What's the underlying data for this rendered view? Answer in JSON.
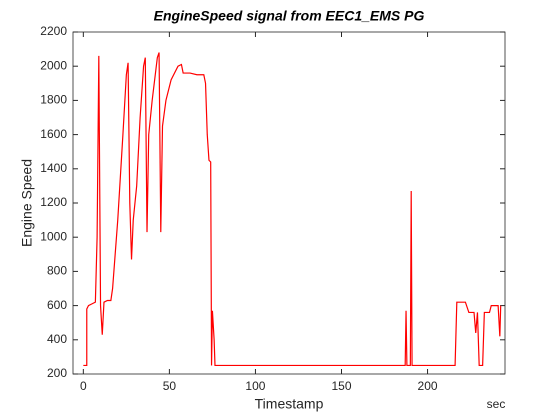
{
  "chart_data": {
    "type": "line",
    "title": "EngineSpeed  signal  from  EEC1_EMS  PG",
    "x_label": "Timestamp",
    "y_label": "Engine Speed",
    "x_unit": "sec",
    "xlim": [
      -6,
      245
    ],
    "ylim": [
      200,
      2200
    ],
    "xticks": [
      0,
      50,
      100,
      150,
      200
    ],
    "yticks": [
      200,
      400,
      600,
      800,
      1000,
      1200,
      1400,
      1600,
      1800,
      2000,
      2200
    ],
    "series": [
      {
        "name": "EngineSpeed",
        "color": "#ff0000",
        "x": [
          0,
          2,
          2,
          3,
          5,
          7,
          8,
          9,
          10,
          11,
          12,
          14,
          16,
          17,
          20,
          23,
          25,
          26,
          27,
          28,
          29,
          31,
          33,
          35,
          36,
          37,
          38,
          40,
          43,
          44,
          45,
          46,
          48,
          51,
          55,
          57,
          58,
          62,
          66,
          70,
          71,
          72,
          73,
          74,
          74.5,
          75,
          76,
          76.5,
          180,
          187,
          187.5,
          188,
          190,
          190.5,
          191,
          216,
          217,
          222,
          224,
          227,
          228,
          229,
          230,
          232,
          233,
          236,
          237,
          241,
          242,
          242.5
        ],
        "values": [
          250,
          250,
          580,
          600,
          610,
          620,
          1000,
          2060,
          600,
          430,
          620,
          630,
          630,
          700,
          1100,
          1600,
          1950,
          2020,
          1200,
          870,
          1100,
          1300,
          1700,
          2000,
          2050,
          1030,
          1600,
          1800,
          2050,
          2080,
          1030,
          1650,
          1800,
          1920,
          2000,
          2010,
          1960,
          1960,
          1950,
          1950,
          1900,
          1600,
          1450,
          1440,
          250,
          570,
          400,
          250,
          250,
          250,
          570,
          250,
          250,
          1270,
          250,
          250,
          620,
          620,
          560,
          560,
          440,
          560,
          250,
          250,
          560,
          560,
          600,
          600,
          420,
          600
        ]
      }
    ]
  }
}
